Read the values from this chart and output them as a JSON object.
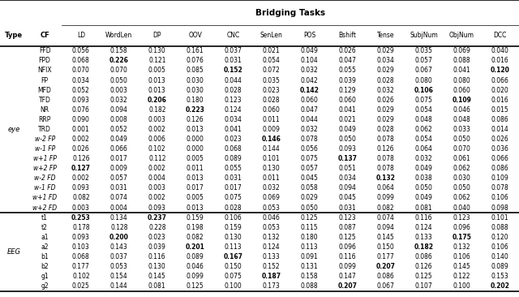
{
  "title": "Bridging Tasks",
  "col_headers": [
    "LD",
    "WordLen",
    "DP",
    "OOV",
    "CNC",
    "SenLen",
    "POS",
    "Bshift",
    "Tense",
    "SubjNum",
    "ObjNum",
    "DCC"
  ],
  "row_groups": [
    {
      "type": "eye",
      "rows": [
        {
          "cf": "FFD",
          "vals": [
            "0.056",
            "0.158",
            "0.130",
            "0.161",
            "0.037",
            "0.021",
            "0.049",
            "0.026",
            "0.029",
            "0.035",
            "0.069",
            "0.040"
          ],
          "bold": []
        },
        {
          "cf": "FPD",
          "vals": [
            "0.068",
            "0.226",
            "0.121",
            "0.076",
            "0.031",
            "0.054",
            "0.104",
            "0.047",
            "0.034",
            "0.057",
            "0.088",
            "0.016"
          ],
          "bold": [
            1
          ]
        },
        {
          "cf": "NFIX",
          "vals": [
            "0.070",
            "0.070",
            "0.005",
            "0.085",
            "0.152",
            "0.072",
            "0.032",
            "0.055",
            "0.029",
            "0.067",
            "0.041",
            "0.120"
          ],
          "bold": [
            4,
            11
          ]
        },
        {
          "cf": "FP",
          "vals": [
            "0.034",
            "0.050",
            "0.013",
            "0.030",
            "0.044",
            "0.035",
            "0.042",
            "0.039",
            "0.028",
            "0.080",
            "0.080",
            "0.066"
          ],
          "bold": []
        },
        {
          "cf": "MFD",
          "vals": [
            "0.052",
            "0.003",
            "0.013",
            "0.030",
            "0.028",
            "0.023",
            "0.142",
            "0.129",
            "0.032",
            "0.106",
            "0.060",
            "0.020"
          ],
          "bold": [
            6,
            9
          ]
        },
        {
          "cf": "TFD",
          "vals": [
            "0.093",
            "0.032",
            "0.206",
            "0.180",
            "0.123",
            "0.028",
            "0.060",
            "0.060",
            "0.026",
            "0.075",
            "0.109",
            "0.016"
          ],
          "bold": [
            2,
            10
          ]
        },
        {
          "cf": "NR",
          "vals": [
            "0.076",
            "0.094",
            "0.182",
            "0.223",
            "0.124",
            "0.060",
            "0.047",
            "0.041",
            "0.029",
            "0.054",
            "0.046",
            "0.015"
          ],
          "bold": [
            3
          ]
        },
        {
          "cf": "RRP",
          "vals": [
            "0.090",
            "0.008",
            "0.003",
            "0.126",
            "0.034",
            "0.011",
            "0.044",
            "0.021",
            "0.029",
            "0.048",
            "0.048",
            "0.086"
          ],
          "bold": []
        },
        {
          "cf": "TRD",
          "vals": [
            "0.001",
            "0.052",
            "0.002",
            "0.013",
            "0.041",
            "0.009",
            "0.032",
            "0.049",
            "0.028",
            "0.062",
            "0.033",
            "0.014"
          ],
          "bold": []
        },
        {
          "cf": "w-2 FP",
          "vals": [
            "0.002",
            "0.049",
            "0.006",
            "0.000",
            "0.023",
            "0.146",
            "0.078",
            "0.050",
            "0.078",
            "0.054",
            "0.050",
            "0.026"
          ],
          "bold": [
            5
          ]
        },
        {
          "cf": "w-1 FP",
          "vals": [
            "0.026",
            "0.066",
            "0.102",
            "0.000",
            "0.068",
            "0.144",
            "0.056",
            "0.093",
            "0.126",
            "0.064",
            "0.070",
            "0.036"
          ],
          "bold": []
        },
        {
          "cf": "w+1 FP",
          "vals": [
            "0.126",
            "0.017",
            "0.112",
            "0.005",
            "0.089",
            "0.101",
            "0.075",
            "0.137",
            "0.078",
            "0.032",
            "0.061",
            "0.066"
          ],
          "bold": [
            7
          ]
        },
        {
          "cf": "w+2 FP",
          "vals": [
            "0.127",
            "0.009",
            "0.002",
            "0.011",
            "0.055",
            "0.130",
            "0.057",
            "0.051",
            "0.078",
            "0.049",
            "0.062",
            "0.086"
          ],
          "bold": [
            0
          ]
        },
        {
          "cf": "w-2 FD",
          "vals": [
            "0.002",
            "0.057",
            "0.004",
            "0.013",
            "0.031",
            "0.011",
            "0.045",
            "0.034",
            "0.132",
            "0.038",
            "0.030",
            "0.109"
          ],
          "bold": [
            8
          ]
        },
        {
          "cf": "w-1 FD",
          "vals": [
            "0.093",
            "0.031",
            "0.003",
            "0.017",
            "0.017",
            "0.032",
            "0.058",
            "0.094",
            "0.064",
            "0.050",
            "0.050",
            "0.078"
          ],
          "bold": []
        },
        {
          "cf": "w+1 FD",
          "vals": [
            "0.082",
            "0.074",
            "0.002",
            "0.005",
            "0.075",
            "0.069",
            "0.029",
            "0.045",
            "0.099",
            "0.049",
            "0.062",
            "0.106"
          ],
          "bold": []
        },
        {
          "cf": "w+2 FD",
          "vals": [
            "0.003",
            "0.004",
            "0.093",
            "0.013",
            "0.028",
            "0.053",
            "0.050",
            "0.031",
            "0.082",
            "0.081",
            "0.040",
            "0.098"
          ],
          "bold": []
        }
      ]
    },
    {
      "type": "EEG",
      "rows": [
        {
          "cf": "t1",
          "vals": [
            "0.253",
            "0.134",
            "0.237",
            "0.159",
            "0.106",
            "0.046",
            "0.125",
            "0.123",
            "0.074",
            "0.116",
            "0.123",
            "0.101"
          ],
          "bold": [
            0,
            2
          ]
        },
        {
          "cf": "t2",
          "vals": [
            "0.178",
            "0.128",
            "0.228",
            "0.198",
            "0.159",
            "0.053",
            "0.115",
            "0.087",
            "0.094",
            "0.124",
            "0.096",
            "0.088"
          ],
          "bold": []
        },
        {
          "cf": "a1",
          "vals": [
            "0.093",
            "0.200",
            "0.023",
            "0.082",
            "0.130",
            "0.132",
            "0.180",
            "0.125",
            "0.145",
            "0.133",
            "0.175",
            "0.120"
          ],
          "bold": [
            1,
            10
          ]
        },
        {
          "cf": "a2",
          "vals": [
            "0.103",
            "0.143",
            "0.039",
            "0.201",
            "0.113",
            "0.124",
            "0.113",
            "0.096",
            "0.150",
            "0.182",
            "0.132",
            "0.106"
          ],
          "bold": [
            3,
            9
          ]
        },
        {
          "cf": "b1",
          "vals": [
            "0.068",
            "0.037",
            "0.116",
            "0.089",
            "0.167",
            "0.133",
            "0.091",
            "0.116",
            "0.177",
            "0.086",
            "0.106",
            "0.140"
          ],
          "bold": [
            4
          ]
        },
        {
          "cf": "b2",
          "vals": [
            "0.177",
            "0.053",
            "0.130",
            "0.046",
            "0.150",
            "0.152",
            "0.131",
            "0.099",
            "0.207",
            "0.126",
            "0.145",
            "0.089"
          ],
          "bold": [
            8
          ]
        },
        {
          "cf": "g1",
          "vals": [
            "0.102",
            "0.154",
            "0.145",
            "0.099",
            "0.075",
            "0.187",
            "0.158",
            "0.147",
            "0.086",
            "0.125",
            "0.122",
            "0.153"
          ],
          "bold": [
            5
          ]
        },
        {
          "cf": "g2",
          "vals": [
            "0.025",
            "0.144",
            "0.081",
            "0.125",
            "0.100",
            "0.173",
            "0.088",
            "0.207",
            "0.067",
            "0.107",
            "0.100",
            "0.202"
          ],
          "bold": [
            7,
            11
          ]
        }
      ]
    }
  ],
  "cf_italic": [
    "w-2 FP",
    "w-1 FP",
    "w+1 FP",
    "w+2 FP",
    "w-2 FD",
    "w-1 FD",
    "w+1 FD",
    "w+2 FD"
  ]
}
